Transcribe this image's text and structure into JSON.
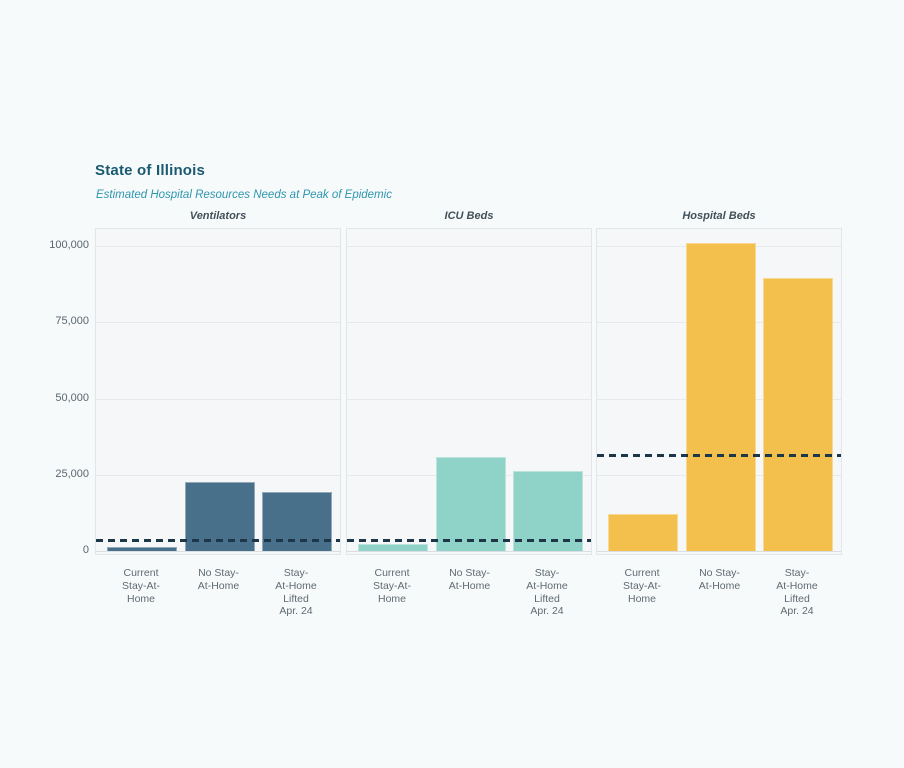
{
  "header": {
    "title": "State of Illinois",
    "subtitle": "Estimated Hospital Resources Needs at Peak of Epidemic",
    "title_color": "#1a5a70",
    "subtitle_color": "#2e96ad"
  },
  "chart_data": {
    "type": "bar",
    "title": "State of Illinois",
    "subtitle": "Estimated Hospital Resources Needs at Peak of Epidemic",
    "categories": [
      "Current Stay-At-Home",
      "No Stay-At-Home",
      "Stay-At-Home Lifted Apr. 24"
    ],
    "category_label_lines": [
      [
        "Current",
        "Stay-At-",
        "Home"
      ],
      [
        "No Stay-",
        "At-Home"
      ],
      [
        "Stay-",
        "At-Home",
        "Lifted",
        "Apr. 24"
      ]
    ],
    "panels": [
      {
        "title": "Ventilators",
        "bar_color": "#48708a",
        "values": [
          1300,
          22500,
          19200
        ],
        "capacity_line": 3700
      },
      {
        "title": "ICU Beds",
        "bar_color": "#8fd2c7",
        "values": [
          2200,
          30800,
          26200
        ],
        "capacity_line": 3500
      },
      {
        "title": "Hospital Beds",
        "bar_color": "#f4c04d",
        "values": [
          12000,
          101000,
          89400
        ],
        "capacity_line": 31500
      }
    ],
    "ylabel": "",
    "xlabel": "",
    "ylim": [
      0,
      105600
    ],
    "yticks": [
      0,
      25000,
      50000,
      75000,
      100000
    ],
    "ytick_labels": [
      "0",
      "25,000",
      "50,000",
      "75,000",
      "100,000"
    ],
    "grid": true,
    "legend": "none",
    "capacity_line_color": "#1d3749",
    "capacity_line_style": "dashed",
    "panel_background": "#f5f7f8",
    "page_background": "#f7fafb"
  }
}
